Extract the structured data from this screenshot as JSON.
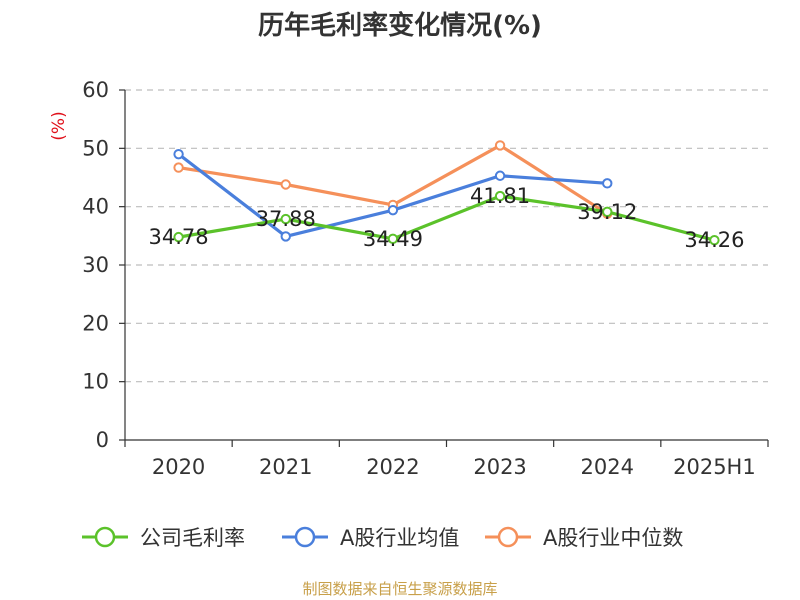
{
  "chart_data": {
    "type": "line",
    "title": "历年毛利率变化情况(%)",
    "ylabel": "(%)",
    "categories": [
      "2020",
      "2021",
      "2022",
      "2023",
      "2024",
      "2025H1"
    ],
    "ylim": [
      0,
      60
    ],
    "yticks": [
      0,
      10,
      20,
      30,
      40,
      50,
      60
    ],
    "grid": "horizontal-dashed",
    "legend_position": "bottom",
    "series": [
      {
        "name": "公司毛利率",
        "color": "#5bc22a",
        "values": [
          34.78,
          37.88,
          34.49,
          41.81,
          39.12,
          34.26
        ],
        "labels": [
          "34.78",
          "37.88",
          "34.49",
          "41.81",
          "39.12",
          "34.26"
        ]
      },
      {
        "name": "A股行业均值",
        "color": "#4a7fdc",
        "values": [
          49.0,
          34.9,
          39.4,
          45.3,
          44.0,
          null
        ]
      },
      {
        "name": "A股行业中位数",
        "color": "#f5905a",
        "values": [
          46.7,
          43.8,
          40.3,
          50.5,
          38.8,
          null
        ]
      }
    ]
  },
  "source": "制图数据来自恒生聚源数据库"
}
